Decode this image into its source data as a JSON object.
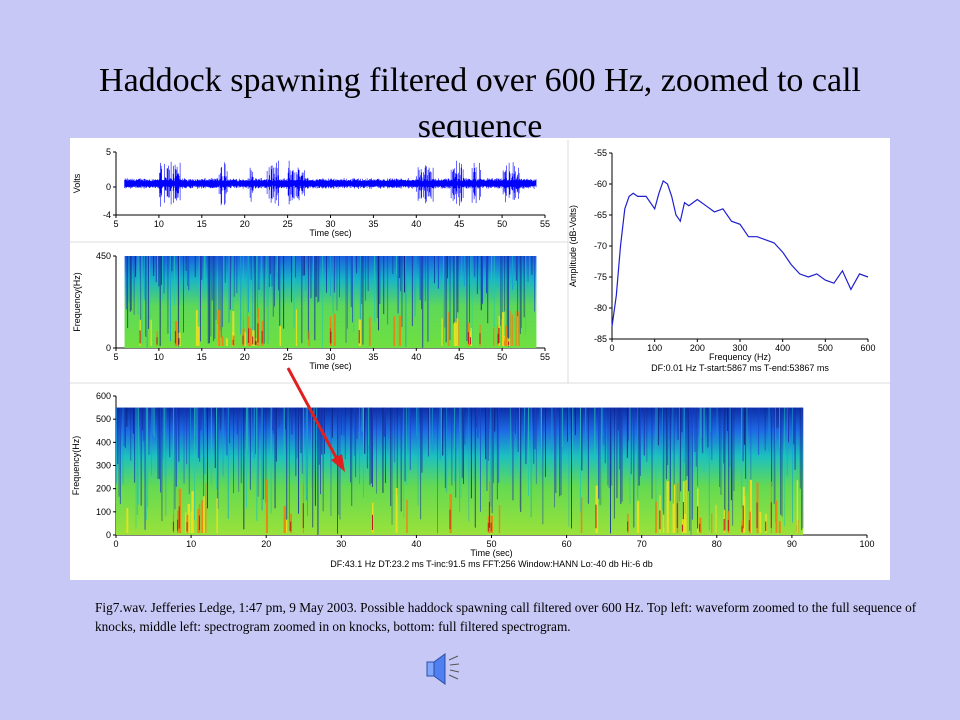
{
  "slide": {
    "title": "Haddock spawning filtered over 600 Hz, zoomed to call sequence",
    "caption": "Fig7.wav.  Jefferies Ledge, 1:47 pm, 9 May 2003.  Possible haddock spawning call filtered over 600 Hz. Top left: waveform zoomed to the full sequence of knocks, middle left: spectrogram zoomed in on knocks, bottom: full filtered spectrogram.",
    "speaker_icon": "speaker-icon",
    "colors": {
      "background": "#c8c8f6",
      "waveform": "#0000ff",
      "spectrum": "#1f1fd0",
      "arrow": "#e02020"
    }
  },
  "chart_data": [
    {
      "type": "line",
      "name": "waveform",
      "xlabel": "Time (sec)",
      "ylabel": "Volts",
      "xlim": [
        5,
        55
      ],
      "ylim": [
        -4,
        5
      ],
      "xticks": [
        5,
        10,
        15,
        20,
        25,
        30,
        35,
        40,
        45,
        50,
        55
      ],
      "yticks": [
        -4,
        0,
        5
      ],
      "signal_range": [
        6,
        54
      ],
      "bursts": [
        [
          10,
          12.5
        ],
        [
          17,
          18
        ],
        [
          20.5,
          21
        ],
        [
          22.5,
          24
        ],
        [
          25,
          27
        ],
        [
          40,
          42
        ],
        [
          44,
          45.5
        ],
        [
          46.5,
          47.5
        ],
        [
          50,
          52
        ]
      ]
    },
    {
      "type": "heatmap",
      "name": "spectrogram-zoomed",
      "xlabel": "Time (sec)",
      "ylabel": "Frequency(Hz)",
      "xlim": [
        5,
        55
      ],
      "ylim": [
        0,
        450
      ],
      "xticks": [
        5,
        10,
        15,
        20,
        25,
        30,
        35,
        40,
        45,
        50,
        55
      ],
      "yticks": [
        0,
        450
      ],
      "data_range": [
        6,
        54
      ]
    },
    {
      "type": "line",
      "name": "spectrum",
      "xlabel": "Frequency (Hz)",
      "ylabel": "Amplitude (dB-Volts)",
      "xlim": [
        0,
        600
      ],
      "ylim": [
        -85,
        -55
      ],
      "xticks": [
        0,
        100,
        200,
        300,
        400,
        500,
        600
      ],
      "yticks": [
        -55,
        -60,
        -65,
        -70,
        -75,
        -80,
        -85
      ],
      "x": [
        0,
        10,
        20,
        30,
        40,
        50,
        60,
        80,
        100,
        110,
        120,
        130,
        140,
        150,
        160,
        170,
        180,
        200,
        220,
        240,
        260,
        280,
        300,
        320,
        340,
        360,
        380,
        400,
        420,
        440,
        460,
        480,
        500,
        520,
        540,
        560,
        580,
        600
      ],
      "y": [
        -83,
        -78,
        -70,
        -64,
        -62,
        -61.5,
        -62,
        -62,
        -64,
        -61.5,
        -59.5,
        -60,
        -62,
        -65,
        -66,
        -63,
        -63.5,
        -62.5,
        -63.5,
        -64.5,
        -64,
        -66,
        -66.5,
        -68.5,
        -68.5,
        -69,
        -69.5,
        -71,
        -73,
        -74.5,
        -75,
        -74.5,
        -75.5,
        -76,
        -74,
        -77,
        -74.5,
        -75
      ],
      "footer": "DF:0.01 Hz    T-start:5867 ms    T-end:53867 ms"
    },
    {
      "type": "heatmap",
      "name": "spectrogram-full",
      "xlabel": "Time (sec)",
      "ylabel": "Frequency(Hz)",
      "xlim": [
        0,
        100
      ],
      "ylim": [
        0,
        600
      ],
      "xticks": [
        0,
        10,
        20,
        30,
        40,
        50,
        60,
        70,
        80,
        90,
        100
      ],
      "yticks": [
        0,
        100,
        200,
        300,
        400,
        500,
        600
      ],
      "data_range": [
        0,
        91.5
      ],
      "frequency_max": 550,
      "footer": "DF:43.1 Hz    DT:23.2 ms    T-inc:91.5 ms    FFT:256    Window:HANN    Lo:-40 db    Hi:-6 db"
    }
  ]
}
